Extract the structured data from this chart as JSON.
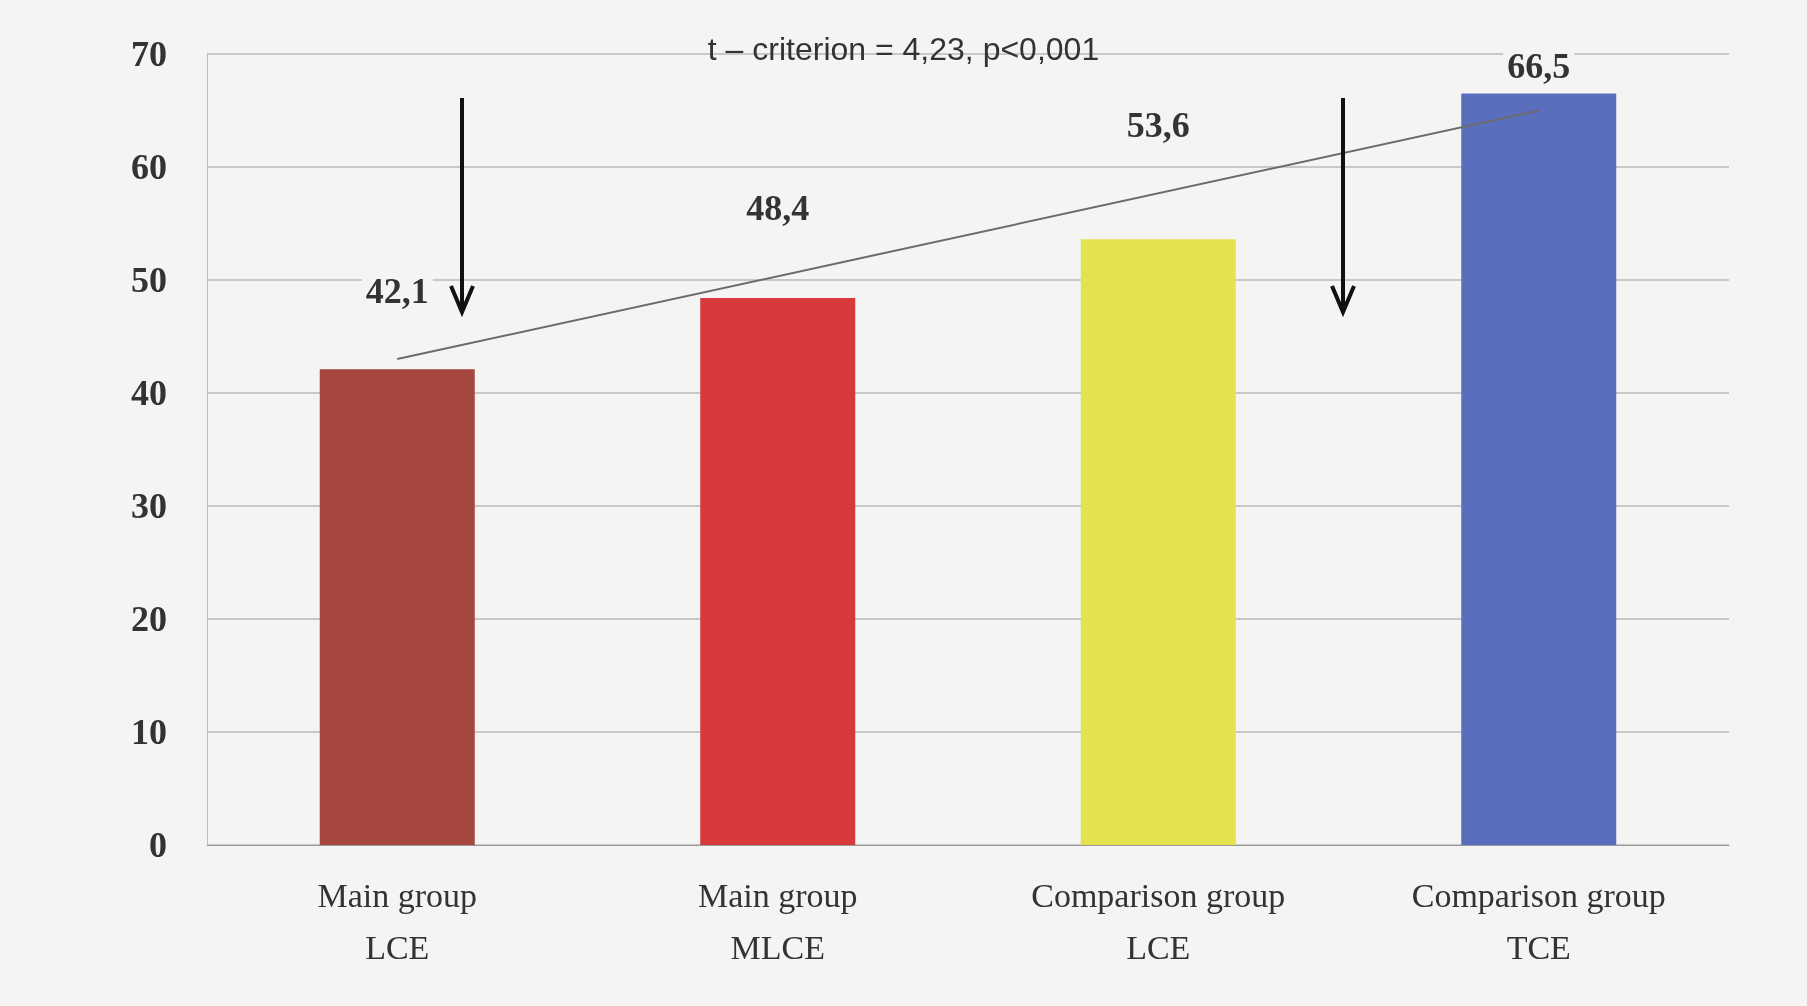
{
  "chart_data": {
    "type": "bar",
    "categories": [
      "Main group\nLCE",
      "Main group\nMLCE",
      "Comparison group\nLCE",
      "Comparison group\nTCE"
    ],
    "values": [
      42.1,
      48.4,
      53.6,
      66.5
    ],
    "colors": [
      "#a5473f",
      "#d63a3a",
      "#e4e24e",
      "#5b6dbd"
    ],
    "value_labels": [
      "42,1",
      "48,4",
      "53,6",
      "66,5"
    ],
    "series": [
      {
        "type": "line",
        "x": [
          "Main group\nLCE",
          "Comparison group\nTCE"
        ],
        "values": [
          43,
          65
        ],
        "color": "#6b6b6b"
      }
    ],
    "marker": "none",
    "ylim": [
      0,
      70
    ],
    "yticks": [
      0,
      10,
      20,
      30,
      40,
      50,
      60,
      70
    ],
    "grid": "y",
    "annotations": [
      "t – criterion = 4,23, p<0,001"
    ]
  }
}
